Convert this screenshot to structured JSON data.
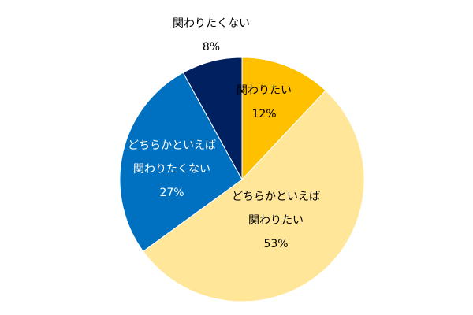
{
  "chart_data": {
    "type": "pie",
    "categories": [
      [
        "関わりたい"
      ],
      [
        "どちらかといえば",
        "関わりたい"
      ],
      [
        "どちらかといえば",
        "関わりたくない"
      ],
      [
        "関わりたくない"
      ]
    ],
    "values": [
      12,
      53,
      27,
      8
    ],
    "value_labels": [
      "12%",
      "53%",
      "27%",
      "8%"
    ],
    "colors": [
      "#ffc000",
      "#ffe699",
      "#0070c0",
      "#002060"
    ],
    "label_colors": [
      "#000000",
      "#000000",
      "#ffffff",
      "#000000"
    ]
  }
}
